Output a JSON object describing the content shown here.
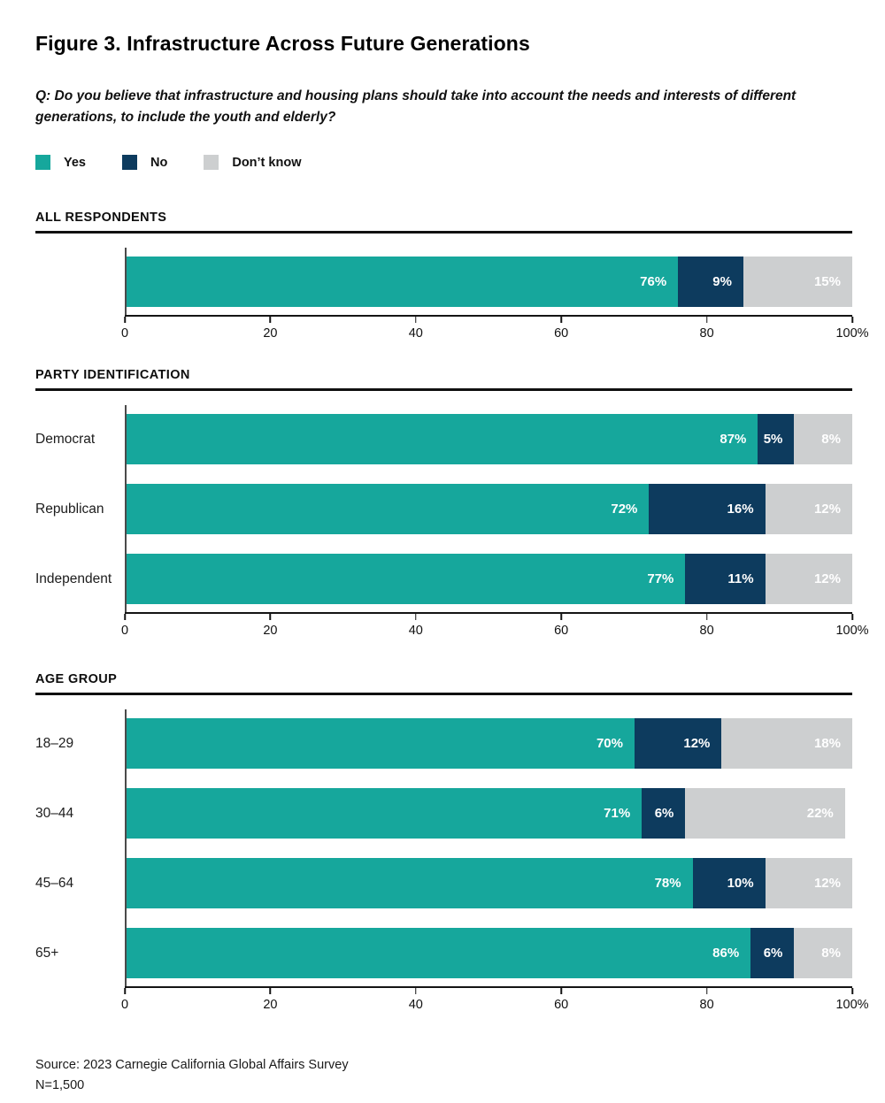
{
  "page": {
    "title": "Figure 3. Infrastructure Across Future Generations",
    "question": "Q: Do you believe that infrastructure and housing plans should take into account the needs and interests of different generations, to include the youth and elderly?",
    "source_line1": "Source: 2023 Carnegie California Global Affairs Survey",
    "source_line2": "N=1,500"
  },
  "legend": {
    "items": [
      {
        "label": "Yes",
        "color": "#16A79C"
      },
      {
        "label": "No",
        "color": "#0D3B5E"
      },
      {
        "label": "Don’t know",
        "color": "#CDCFD0"
      }
    ]
  },
  "colors": {
    "yes": "#16A79C",
    "no": "#0D3B5E",
    "dont_know": "#CDCFD0",
    "bar_label": "#ffffff",
    "axis_line": "#141414",
    "spine": "#4a4a4a",
    "section_rule": "#101010"
  },
  "axis": {
    "tick_values": [
      0,
      20,
      40,
      60,
      80,
      100
    ],
    "tick_labels": [
      "0",
      "20",
      "40",
      "60",
      "80",
      "100%"
    ],
    "xlim": [
      0,
      100
    ]
  },
  "chart_data": [
    {
      "type": "bar",
      "orientation": "horizontal",
      "stacked": true,
      "title": "ALL RESPONDENTS",
      "categories": [
        ""
      ],
      "series": [
        {
          "name": "Yes",
          "values": [
            76
          ]
        },
        {
          "name": "No",
          "values": [
            9
          ]
        },
        {
          "name": "Don’t know",
          "values": [
            15
          ]
        }
      ],
      "value_suffix": "%",
      "xlim": [
        0,
        100
      ]
    },
    {
      "type": "bar",
      "orientation": "horizontal",
      "stacked": true,
      "title": "PARTY IDENTIFICATION",
      "categories": [
        "Democrat",
        "Republican",
        "Independent"
      ],
      "series": [
        {
          "name": "Yes",
          "values": [
            87,
            72,
            77
          ]
        },
        {
          "name": "No",
          "values": [
            5,
            16,
            11
          ]
        },
        {
          "name": "Don’t know",
          "values": [
            8,
            12,
            12
          ]
        }
      ],
      "value_suffix": "%",
      "xlim": [
        0,
        100
      ]
    },
    {
      "type": "bar",
      "orientation": "horizontal",
      "stacked": true,
      "title": "AGE GROUP",
      "categories": [
        "18–29",
        "30–44",
        "45–64",
        "65+"
      ],
      "series": [
        {
          "name": "Yes",
          "values": [
            70,
            71,
            78,
            86
          ]
        },
        {
          "name": "No",
          "values": [
            12,
            6,
            10,
            6
          ]
        },
        {
          "name": "Don’t know",
          "values": [
            18,
            22,
            12,
            8
          ]
        }
      ],
      "value_suffix": "%",
      "xlim": [
        0,
        100
      ]
    }
  ]
}
